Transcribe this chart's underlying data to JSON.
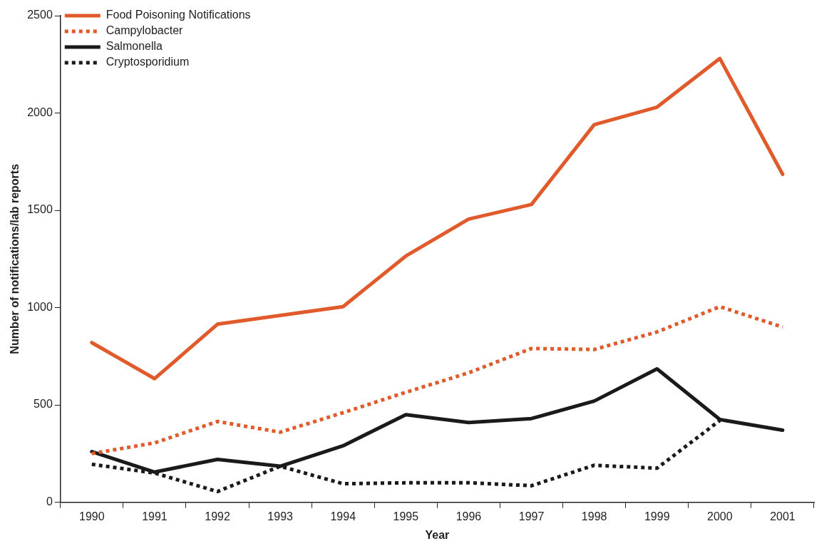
{
  "chart_data": {
    "type": "line",
    "xlabel": "Year",
    "ylabel": "Number of notifications/lab reports",
    "categories": [
      "1990",
      "1991",
      "1992",
      "1993",
      "1994",
      "1995",
      "1996",
      "1997",
      "1998",
      "1999",
      "2000",
      "2001"
    ],
    "series": [
      {
        "name": "Food Poisoning Notifications",
        "color": "#e05a2b",
        "line_style": "solid",
        "values": [
          820,
          635,
          915,
          960,
          1005,
          1265,
          1455,
          1530,
          1940,
          2030,
          2280,
          1685
        ]
      },
      {
        "name": "Campylobacter",
        "color": "#e05a2b",
        "line_style": "dotted",
        "values": [
          250,
          305,
          415,
          360,
          460,
          565,
          665,
          790,
          785,
          875,
          1005,
          900
        ]
      },
      {
        "name": "Salmonella",
        "color": "#1a1a1a",
        "line_style": "solid",
        "values": [
          260,
          155,
          220,
          185,
          290,
          450,
          410,
          430,
          520,
          685,
          425,
          370
        ]
      },
      {
        "name": "Cryptosporidium",
        "color": "#1a1a1a",
        "line_style": "dotted",
        "values": [
          195,
          150,
          55,
          185,
          95,
          100,
          100,
          85,
          190,
          175,
          420,
          null
        ]
      }
    ],
    "ylim": [
      0,
      2500
    ],
    "yticks": [
      0,
      500,
      1000,
      1500,
      2000,
      2500
    ],
    "grid": false,
    "legend": "top left",
    "marker": "none"
  }
}
